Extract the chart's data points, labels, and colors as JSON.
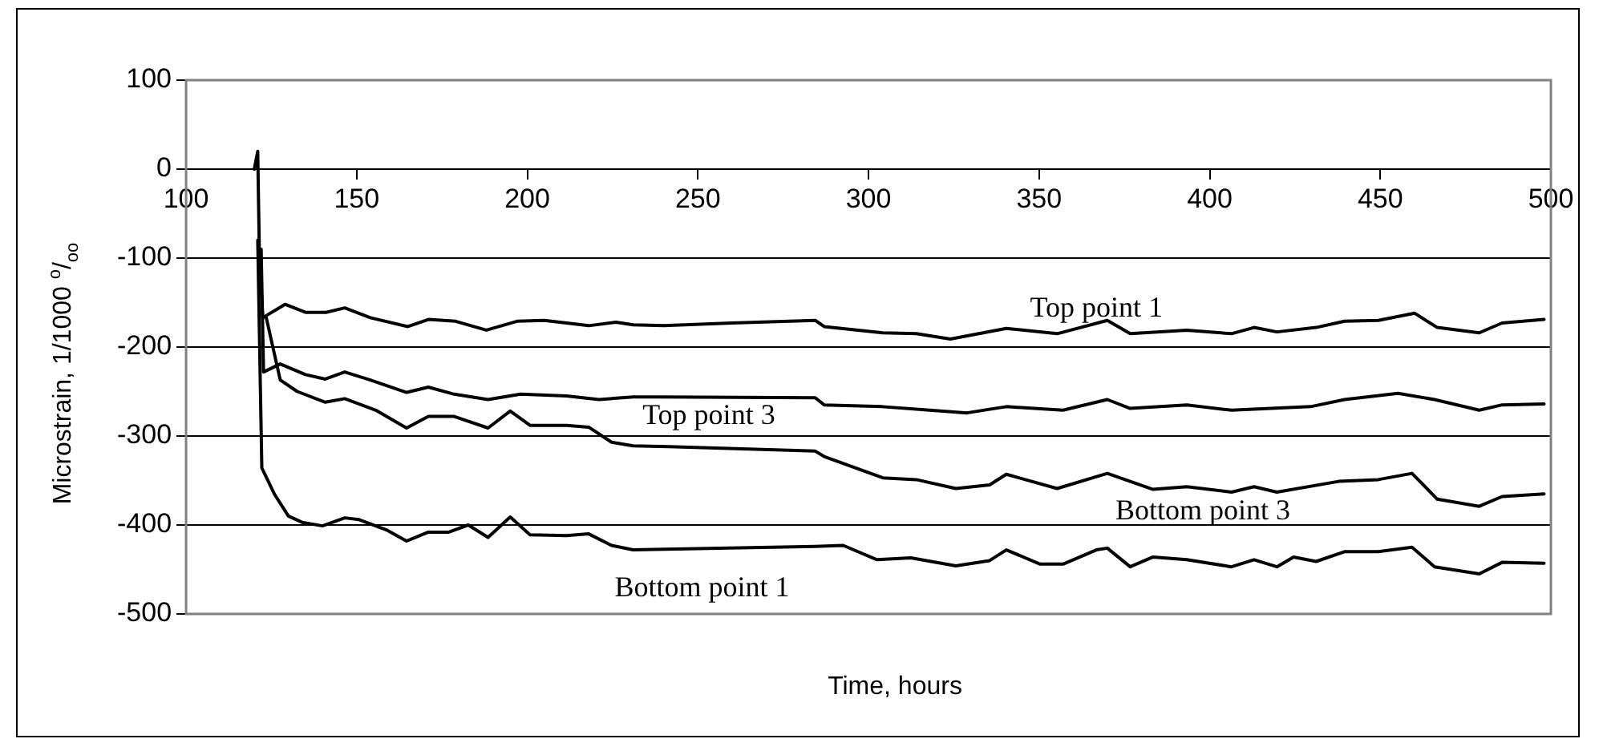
{
  "chart_data": {
    "type": "line",
    "xlabel": "Time, hours",
    "ylabel": "Microstrain, 1/1000 $^{o}$/$_{oo}$",
    "xlim": [
      100,
      500
    ],
    "xticks": [
      100,
      150,
      200,
      250,
      300,
      350,
      400,
      450,
      500
    ],
    "ylim": [
      -500,
      100
    ],
    "yticks": [
      -500,
      -400,
      -300,
      -200,
      -100,
      0,
      100
    ],
    "grid": "y",
    "legend": false,
    "marker": "none",
    "line_style": "solid",
    "series": [
      {
        "name": "Top point 1",
        "color": "#000000",
        "x": [
          120,
          121,
          121.5,
          122.5,
          129,
          135,
          141,
          146.5,
          154,
          165,
          171,
          179,
          188,
          197,
          205,
          218,
          226,
          231,
          240,
          260,
          284.4,
          287,
          304.2,
          314,
          324,
          340.4,
          355.3,
          370,
          376.7,
          393.3,
          406.4,
          413,
          419.7,
          431.2,
          439.5,
          449.4,
          460.1,
          466.7,
          479,
          485.7,
          498
        ],
        "values": [
          0,
          20,
          -100,
          -167,
          -152,
          -161,
          -161,
          -156,
          -167,
          -177,
          -169,
          -171,
          -181,
          -171,
          -170,
          -176,
          -172,
          -175,
          -176,
          -173,
          -170,
          -177,
          -184,
          -185,
          -191,
          -179,
          -185,
          -170,
          -185,
          -181,
          -185,
          -178,
          -183,
          -178,
          -171,
          -170,
          -162,
          -178,
          -184,
          -173,
          -169
        ]
      },
      {
        "name": "Top point 3",
        "color": "#000000",
        "x": [
          122,
          122.7,
          127.6,
          135,
          140.8,
          146.5,
          154,
          164.6,
          171,
          178.6,
          188.5,
          198,
          211.5,
          221,
          231,
          238.2,
          284.4,
          287,
          304,
          328.9,
          340.4,
          357,
          370,
          376.7,
          393.3,
          406.4,
          429.6,
          439.5,
          455.2,
          465.9,
          479,
          485.7,
          498
        ],
        "values": [
          -90,
          -228,
          -219,
          -231,
          -236,
          -228,
          -237,
          -251,
          -245,
          -253,
          -259,
          -253,
          -255,
          -259,
          -256,
          -256,
          -257,
          -265,
          -267,
          -274,
          -267,
          -271,
          -259,
          -269,
          -265,
          -271,
          -267,
          -259,
          -252,
          -259,
          -271,
          -265,
          -264
        ]
      },
      {
        "name": "Bottom point 3",
        "color": "#000000",
        "x": [
          123.5,
          127.6,
          132.6,
          140.8,
          146.5,
          155.6,
          164.6,
          171,
          178.6,
          188.5,
          195,
          200.8,
          211.5,
          218,
          224.7,
          231,
          241.5,
          284.4,
          287,
          304.2,
          314,
          325.6,
          335.5,
          340.4,
          355.3,
          370,
          383.4,
          393.3,
          406.4,
          413,
          419.7,
          437.8,
          449.4,
          459.3,
          466.7,
          479,
          485.7,
          498
        ],
        "values": [
          -167,
          -237,
          -250,
          -262,
          -258,
          -271,
          -291,
          -278,
          -278,
          -291,
          -272,
          -288,
          -288,
          -290,
          -307,
          -311,
          -312,
          -317,
          -323,
          -347,
          -349,
          -359,
          -355,
          -343,
          -359,
          -342,
          -360,
          -357,
          -363,
          -357,
          -363,
          -351,
          -349,
          -342,
          -371,
          -379,
          -368,
          -365
        ]
      },
      {
        "name": "Bottom point 1",
        "color": "#000000",
        "x": [
          121,
          122.2,
          126,
          130,
          134,
          140,
          146.5,
          150.7,
          159,
          164.6,
          171,
          177,
          182.7,
          188.5,
          195,
          200.8,
          211.5,
          218,
          224.7,
          231,
          284.4,
          292.6,
          302.5,
          312.4,
          325.6,
          335.5,
          340.4,
          350.3,
          357,
          366.8,
          370,
          376.7,
          383.4,
          393.3,
          406.4,
          413,
          419.7,
          424.6,
          431.2,
          439.5,
          449.4,
          459.3,
          465.9,
          479,
          485.7,
          498
        ],
        "values": [
          -80,
          -336,
          -366,
          -390,
          -397,
          -401,
          -392,
          -394,
          -406,
          -418,
          -408,
          -408,
          -400,
          -414,
          -391,
          -411,
          -412,
          -410,
          -423,
          -428,
          -424,
          -423,
          -439,
          -437,
          -446,
          -440,
          -428,
          -444,
          -444,
          -428,
          -426,
          -447,
          -436,
          -439,
          -447,
          -439,
          -447,
          -436,
          -441,
          -430,
          -430,
          -425,
          -447,
          -455,
          -442,
          -443
        ]
      }
    ]
  }
}
